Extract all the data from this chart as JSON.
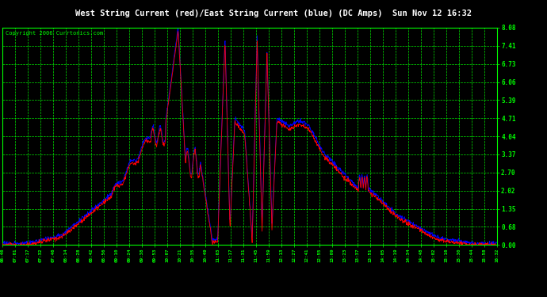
{
  "title": "West String Current (red)/East String Current (blue) (DC Amps)  Sun Nov 12 16:32",
  "copyright": "Copyright 2006 Currtonics.com",
  "background_color": "#000000",
  "plot_bg_color": "#000000",
  "grid_color": "#00ff00",
  "title_color": "#ffffff",
  "title_bg_color": "#000080",
  "ytick_labels": [
    "8.08",
    "7.41",
    "6.73",
    "6.06",
    "5.39",
    "4.71",
    "4.04",
    "3.37",
    "2.70",
    "2.02",
    "1.35",
    "0.68",
    "0.00"
  ],
  "ytick_values": [
    8.08,
    7.41,
    6.73,
    6.06,
    5.39,
    4.71,
    4.04,
    3.37,
    2.7,
    2.02,
    1.35,
    0.68,
    0.0
  ],
  "ylim": [
    0.0,
    8.08
  ],
  "xtick_labels": [
    "06:46",
    "07:01",
    "07:17",
    "07:32",
    "07:46",
    "08:14",
    "08:28",
    "08:42",
    "08:56",
    "09:10",
    "09:24",
    "09:38",
    "09:53",
    "10:07",
    "10:21",
    "10:35",
    "10:49",
    "11:03",
    "11:17",
    "11:31",
    "11:45",
    "11:59",
    "12:13",
    "12:27",
    "12:41",
    "12:55",
    "13:09",
    "13:23",
    "13:37",
    "13:51",
    "14:05",
    "14:19",
    "14:34",
    "14:48",
    "15:02",
    "15:16",
    "15:30",
    "15:44",
    "15:58",
    "16:32"
  ],
  "line_color_west": "#ff0000",
  "line_color_east": "#0000ff",
  "figwidth": 6.9,
  "figheight": 3.75,
  "dpi": 100
}
